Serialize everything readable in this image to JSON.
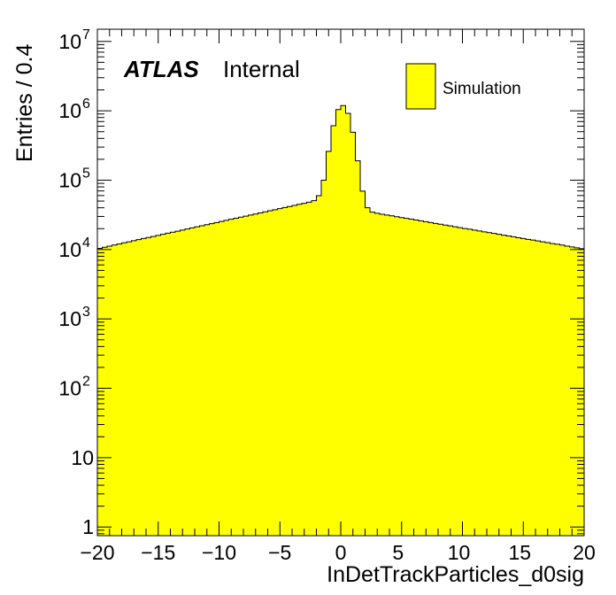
{
  "chart_data": {
    "type": "histogram",
    "title": "",
    "xlabel": "InDetTrackParticles_d0sig",
    "ylabel": "Entries / 0.4",
    "yscale": "log",
    "xlim": [
      -20,
      20
    ],
    "ylim": [
      0.75,
      15000000
    ],
    "bin_width": 0.4,
    "fill_color": "#ffff00",
    "x_tick_labels": [
      "−20",
      "−15",
      "−10",
      "−5",
      "0",
      "5",
      "10",
      "15",
      "20"
    ],
    "x_tick_values": [
      -20,
      -15,
      -10,
      -5,
      0,
      5,
      10,
      15,
      20
    ],
    "y_tick_values": [
      1,
      10,
      100,
      1000,
      10000,
      100000,
      1000000,
      10000000
    ],
    "y_tick_base": [
      "1",
      "10",
      "10",
      "10",
      "10",
      "10",
      "10",
      "10"
    ],
    "y_tick_exp": [
      "",
      "",
      "2",
      "3",
      "4",
      "5",
      "6",
      "7"
    ],
    "series": [
      {
        "name": "Simulation",
        "values": []
      }
    ],
    "atlas_label": "ATLAS",
    "atlas_sublabel": "Internal",
    "legend": {
      "placement": "top-right",
      "entries": [
        "Simulation"
      ]
    }
  }
}
